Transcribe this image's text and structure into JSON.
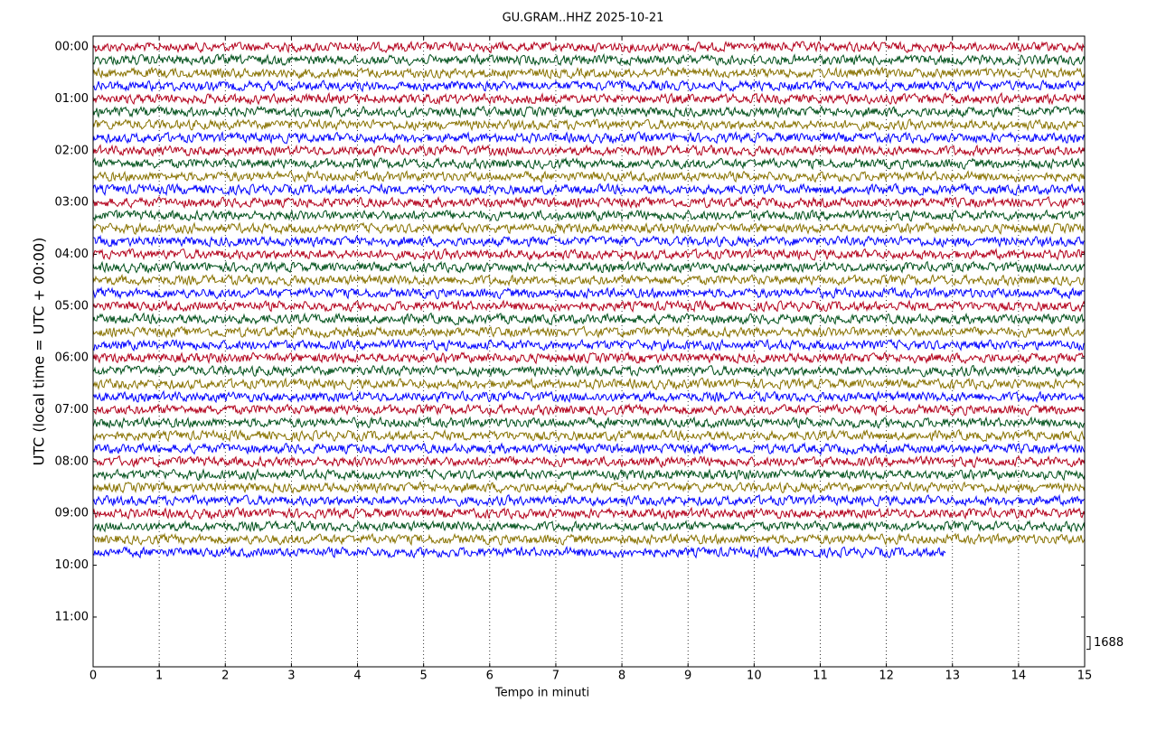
{
  "chart_data": {
    "type": "helicorder",
    "title": "GU.GRAM..HHZ 2025-10-21",
    "xlabel": "Tempo in minuti",
    "ylabel": "UTC (local time = UTC + 00:00)",
    "xlim": [
      0,
      15
    ],
    "xticks": [
      0,
      1,
      2,
      3,
      4,
      5,
      6,
      7,
      8,
      9,
      10,
      11,
      12,
      13,
      14,
      15
    ],
    "ylim": [
      -0.21,
      11.96
    ],
    "y_inverted": true,
    "yticks": [
      {
        "value": 0,
        "label": "00:00"
      },
      {
        "value": 1,
        "label": "01:00"
      },
      {
        "value": 2,
        "label": "02:00"
      },
      {
        "value": 3,
        "label": "03:00"
      },
      {
        "value": 4,
        "label": "04:00"
      },
      {
        "value": 5,
        "label": "05:00"
      },
      {
        "value": 6,
        "label": "06:00"
      },
      {
        "value": 7,
        "label": "07:00"
      },
      {
        "value": 8,
        "label": "08:00"
      },
      {
        "value": 9,
        "label": "09:00"
      },
      {
        "value": 10,
        "label": "10:00"
      },
      {
        "value": 11,
        "label": "11:00"
      }
    ],
    "trace_count": 40,
    "trace_spacing": 0.25,
    "trace_colors": [
      "#b3001b",
      "#00501a",
      "#887200",
      "#0000ff"
    ],
    "last_trace_end": 12.9,
    "grid": true,
    "scale_label": "1688",
    "scale_position": 11.5
  }
}
